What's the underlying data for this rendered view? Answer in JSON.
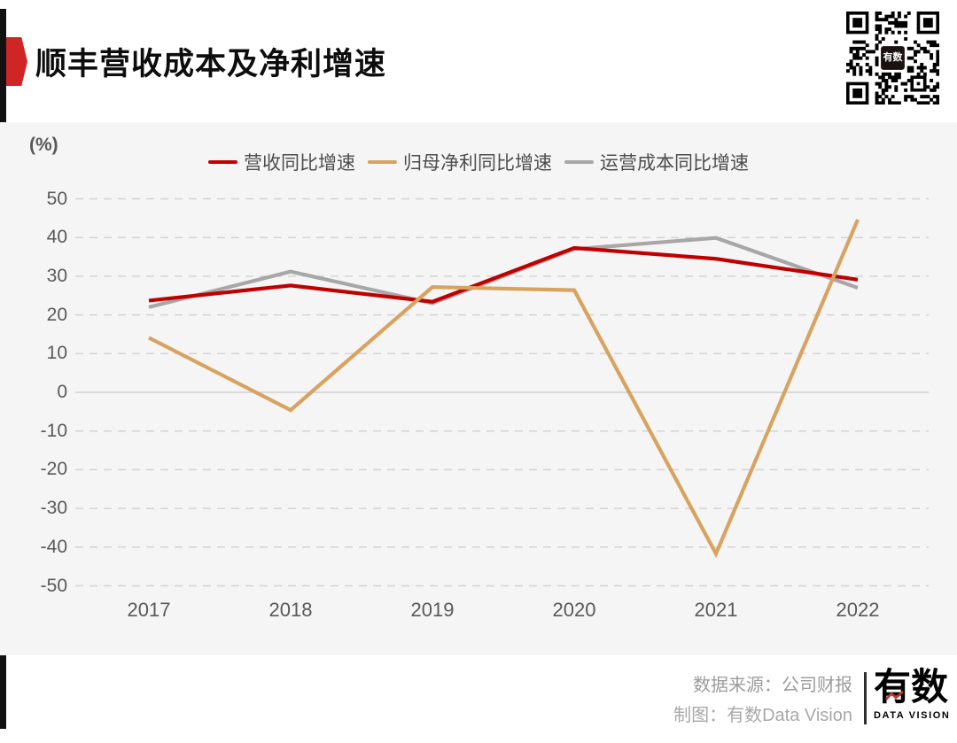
{
  "header": {
    "title": "顺丰营收成本及净利增速"
  },
  "icons": {
    "qr": "qr-code-icon",
    "badge": "title-badge-icon",
    "logo_mark": "zigzag-line-icon"
  },
  "chart_data": {
    "type": "line",
    "title": "顺丰营收成本及净利增速",
    "unit_label": "(%)",
    "categories": [
      "2017",
      "2018",
      "2019",
      "2020",
      "2021",
      "2022"
    ],
    "series": [
      {
        "name": "营收同比增速",
        "color": "#c00000",
        "values": [
          23.7,
          27.6,
          23.4,
          37.3,
          34.5,
          29.1
        ]
      },
      {
        "name": "归母净利同比增速",
        "color": "#d7a35f",
        "values": [
          14.1,
          -4.6,
          27.2,
          26.4,
          -41.7,
          44.6
        ]
      },
      {
        "name": "运营成本同比增速",
        "color": "#a7a7a7",
        "values": [
          22.0,
          31.2,
          23.0,
          37.0,
          39.9,
          27.0
        ]
      }
    ],
    "ylim": [
      -50,
      50
    ],
    "ytick_step": 10,
    "grid": "horizontal dashed, zero line solid",
    "legend_position": "top center"
  },
  "footer": {
    "source": "数据来源：公司财报",
    "credit": "制图：有数Data Vision",
    "logo_main": "有数",
    "logo_sub": "DATA VISION"
  },
  "colors": {
    "accent_red": "#cf2525",
    "series_red": "#c00000",
    "series_tan": "#d7a35f",
    "series_gray": "#a7a7a7",
    "chart_bg": "#f5f5f6",
    "axis_text": "#595959",
    "grid_line": "#d3d3d3",
    "zero_line": "#d0d0d0"
  }
}
